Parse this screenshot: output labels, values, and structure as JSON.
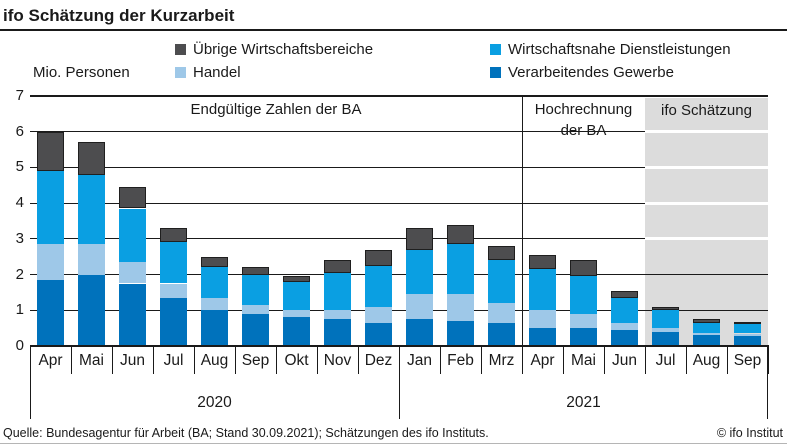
{
  "title": "ifo Schätzung der Kurzarbeit",
  "unit_label": "Mio. Personen",
  "legend": {
    "items": [
      {
        "label": "Übrige Wirtschaftsbereiche",
        "color": "#4D4D4F"
      },
      {
        "label": "Wirtschaftsnahe Dienstleistungen",
        "color": "#0A9FE2"
      },
      {
        "label": "Handel",
        "color": "#9EC8E8"
      },
      {
        "label": "Verarbeitendes Gewerbe",
        "color": "#0072BC"
      }
    ]
  },
  "regions": {
    "final_label": "Endgültige Zahlen der BA",
    "extrapolation_line1": "Hochrechnung",
    "extrapolation_line2": "der BA",
    "estimate_label": "ifo Schätzung",
    "estimate_band_color": "#DCDCDC"
  },
  "chart_data": {
    "type": "bar",
    "stacked": true,
    "title": "ifo Schätzung der Kurzarbeit",
    "ylabel": "Mio. Personen",
    "ylim": [
      0,
      7
    ],
    "yticks": [
      0,
      1,
      2,
      3,
      4,
      5,
      6,
      7
    ],
    "grid": "horizontal",
    "legend_position": "top",
    "categories": [
      "Apr",
      "Mai",
      "Jun",
      "Jul",
      "Aug",
      "Sep",
      "Okt",
      "Nov",
      "Dez",
      "Jan",
      "Feb",
      "Mrz",
      "Apr",
      "Mai",
      "Jun",
      "Jul",
      "Aug",
      "Sep"
    ],
    "year_groups": [
      {
        "label": "2020",
        "start": 0,
        "count": 9
      },
      {
        "label": "2021",
        "start": 9,
        "count": 9
      }
    ],
    "series": [
      {
        "name": "Verarbeitendes Gewerbe",
        "color": "#0072BC",
        "values": [
          1.85,
          2.0,
          1.75,
          1.35,
          1.0,
          0.9,
          0.8,
          0.75,
          0.65,
          0.75,
          0.7,
          0.65,
          0.5,
          0.5,
          0.45,
          0.4,
          0.3,
          0.28
        ]
      },
      {
        "name": "Handel",
        "color": "#9EC8E8",
        "values": [
          1.0,
          0.85,
          0.6,
          0.4,
          0.35,
          0.25,
          0.2,
          0.25,
          0.45,
          0.7,
          0.75,
          0.55,
          0.5,
          0.4,
          0.2,
          0.1,
          0.07,
          0.07
        ]
      },
      {
        "name": "Wirtschaftsnahe Dienstleistungen",
        "color": "#0A9FE2",
        "values": [
          2.05,
          1.95,
          1.5,
          1.15,
          0.85,
          0.85,
          0.8,
          1.05,
          1.15,
          1.25,
          1.4,
          1.2,
          1.15,
          1.05,
          0.7,
          0.5,
          0.28,
          0.27
        ]
      },
      {
        "name": "Übrige Wirtschaftsbereiche",
        "color": "#4D4D4F",
        "values": [
          1.1,
          0.9,
          0.6,
          0.4,
          0.3,
          0.2,
          0.15,
          0.35,
          0.45,
          0.6,
          0.55,
          0.4,
          0.4,
          0.45,
          0.2,
          0.1,
          0.1,
          0.05
        ]
      }
    ],
    "totals": [
      6.0,
      5.7,
      4.45,
      3.3,
      2.5,
      2.2,
      1.95,
      2.4,
      2.7,
      3.3,
      3.4,
      2.8,
      2.55,
      2.4,
      1.55,
      1.1,
      0.75,
      0.67
    ],
    "sections": [
      {
        "label": "Endgültige Zahlen der BA",
        "start_index": 0,
        "end_index": 11,
        "shaded": false
      },
      {
        "label": "Hochrechnung der BA",
        "start_index": 12,
        "end_index": 14,
        "shaded": false
      },
      {
        "label": "ifo Schätzung",
        "start_index": 15,
        "end_index": 17,
        "shaded": true
      }
    ]
  },
  "footer": {
    "source": "Quelle: Bundesagentur für Arbeit (BA; Stand 30.09.2021); Schätzungen des ifo Instituts.",
    "copyright": "© ifo Institut"
  }
}
